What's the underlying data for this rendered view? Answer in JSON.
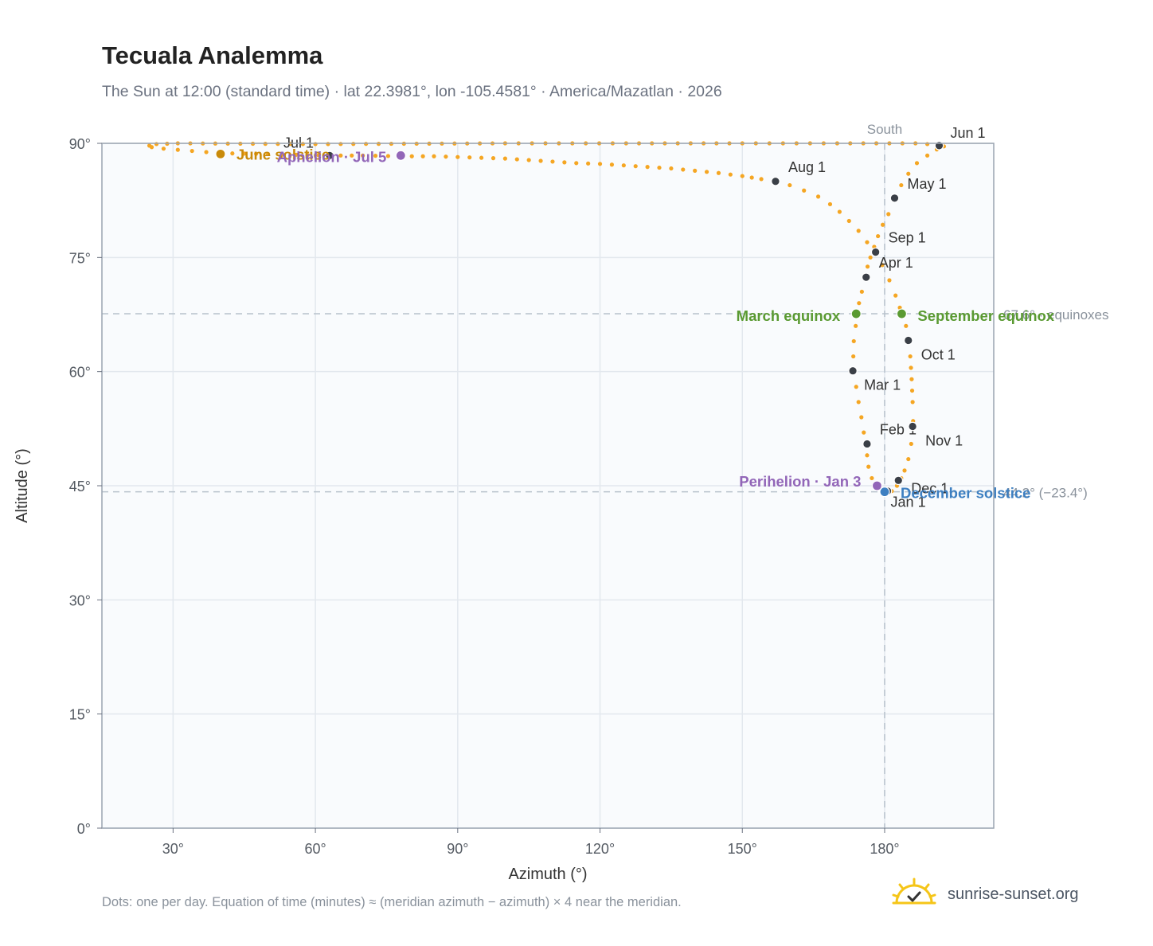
{
  "title": "Tecuala Analemma",
  "subtitle": "The Sun at 12:00 (standard time) · lat 22.3981°, lon -105.4581° · America/Mazatlan · 2026",
  "footnote": "Dots: one per day. Equation of time (minutes) ≈ (meridian azimuth − azimuth) × 4 near the meridian.",
  "brand": {
    "name": "sunrise-sunset.org",
    "logo_icon": "sun-logo-icon"
  },
  "colors": {
    "path": "#f5a623",
    "month_marker": "#3a3f47",
    "solstice_june": "#c98a0a",
    "solstice_december": "#3d7fc1",
    "equinox": "#5a9a32",
    "apsis": "#9266b8",
    "reference_line": "#b8c2cc",
    "plot_bg": "#f9fbfd"
  },
  "chart_data": {
    "type": "scatter",
    "title": "Tecuala Analemma",
    "xlabel": "Azimuth (°)",
    "ylabel": "Altitude (°)",
    "xlim": [
      15,
      203
    ],
    "ylim": [
      0,
      90
    ],
    "x_ticks": [
      "30°",
      "60°",
      "90°",
      "120°",
      "150°",
      "180°"
    ],
    "x_tick_values": [
      30,
      60,
      90,
      120,
      150,
      180
    ],
    "y_ticks": [
      "0°",
      "15°",
      "30°",
      "45°",
      "60°",
      "75°",
      "90°"
    ],
    "y_tick_values": [
      0,
      15,
      30,
      45,
      60,
      75,
      90
    ],
    "grid": true,
    "meridian": {
      "azimuth": 180,
      "label": "South"
    },
    "reference_lines": [
      {
        "altitude": 67.6,
        "label": "67.6° · equinoxes"
      },
      {
        "altitude": 44.2,
        "label": "44.2° (−23.4°)"
      }
    ],
    "series": [
      {
        "daily_points": [
          [
            180.6,
            44.3
          ],
          [
            178.7,
            45.0
          ],
          [
            177.3,
            46.0
          ],
          [
            176.6,
            47.5
          ],
          [
            176.3,
            49.0
          ],
          [
            176.1,
            50.5
          ],
          [
            175.6,
            52.0
          ],
          [
            175.1,
            54.0
          ],
          [
            174.5,
            56.0
          ],
          [
            174.0,
            58.0
          ],
          [
            173.6,
            60.0
          ],
          [
            173.4,
            62.0
          ],
          [
            173.5,
            64.0
          ],
          [
            173.9,
            66.0
          ],
          [
            174.2,
            67.6
          ],
          [
            174.6,
            69.0
          ],
          [
            175.2,
            70.5
          ],
          [
            175.8,
            72.2
          ],
          [
            176.4,
            73.8
          ],
          [
            177.0,
            75.0
          ],
          [
            177.8,
            76.4
          ],
          [
            178.6,
            77.8
          ],
          [
            179.6,
            79.3
          ],
          [
            180.8,
            80.7
          ],
          [
            182.1,
            82.8
          ],
          [
            183.5,
            84.5
          ],
          [
            185.0,
            86.0
          ],
          [
            186.8,
            87.4
          ],
          [
            189.0,
            88.4
          ],
          [
            191.0,
            89.2
          ],
          [
            192.5,
            89.6
          ],
          [
            191.5,
            89.8
          ],
          [
            189.0,
            89.9
          ],
          [
            186.5,
            90.0
          ],
          [
            170.0,
            90.0
          ],
          [
            150.0,
            90.0
          ],
          [
            125.5,
            90.0
          ],
          [
            100.0,
            90.0
          ],
          [
            60.0,
            89.9
          ],
          [
            31.0,
            90.0
          ],
          [
            26.5,
            89.9
          ],
          [
            25.0,
            89.7
          ],
          [
            25.5,
            89.5
          ],
          [
            28.0,
            89.3
          ],
          [
            34.0,
            89.0
          ],
          [
            40.0,
            88.7
          ],
          [
            50.0,
            88.6
          ],
          [
            56.0,
            88.5
          ],
          [
            63.0,
            88.4
          ],
          [
            70.0,
            88.4
          ],
          [
            78.0,
            88.3
          ],
          [
            85.0,
            88.3
          ],
          [
            90.0,
            88.2
          ],
          [
            95.0,
            88.1
          ],
          [
            100.0,
            88.0
          ],
          [
            105.0,
            87.8
          ],
          [
            110.0,
            87.6
          ],
          [
            115.0,
            87.4
          ],
          [
            120.0,
            87.3
          ],
          [
            125.0,
            87.1
          ],
          [
            130.0,
            86.9
          ],
          [
            135.0,
            86.7
          ],
          [
            140.0,
            86.4
          ],
          [
            145.0,
            86.1
          ],
          [
            150.0,
            85.7
          ],
          [
            154.0,
            85.3
          ],
          [
            157.0,
            85.0
          ],
          [
            160.0,
            84.5
          ],
          [
            163.0,
            83.8
          ],
          [
            166.0,
            83.0
          ],
          [
            168.5,
            82.0
          ],
          [
            170.5,
            81.0
          ],
          [
            172.5,
            79.8
          ],
          [
            174.5,
            78.5
          ],
          [
            176.3,
            77.0
          ],
          [
            177.8,
            75.7
          ],
          [
            179.5,
            74.0
          ],
          [
            181.0,
            72.0
          ],
          [
            182.3,
            70.0
          ],
          [
            183.2,
            68.4
          ],
          [
            183.8,
            67.6
          ],
          [
            184.5,
            66.0
          ],
          [
            185.0,
            64.1
          ],
          [
            185.4,
            62.0
          ],
          [
            185.7,
            59.0
          ],
          [
            185.9,
            56.0
          ],
          [
            186.0,
            53.5
          ],
          [
            185.9,
            52.8
          ],
          [
            185.6,
            50.5
          ],
          [
            185.0,
            48.5
          ],
          [
            184.2,
            47.0
          ],
          [
            183.5,
            46.0
          ],
          [
            182.6,
            45.0
          ],
          [
            181.5,
            44.3
          ],
          [
            180.6,
            44.3
          ]
        ]
      }
    ],
    "month_markers": [
      {
        "label": "Jan 1",
        "azimuth": 180.6,
        "altitude": 44.3
      },
      {
        "label": "Feb 1",
        "azimuth": 176.3,
        "altitude": 50.5
      },
      {
        "label": "Mar 1",
        "azimuth": 173.3,
        "altitude": 60.1
      },
      {
        "label": "Apr 1",
        "azimuth": 176.1,
        "altitude": 72.4
      },
      {
        "label": "May 1",
        "azimuth": 182.1,
        "altitude": 82.8
      },
      {
        "label": "Jun 1",
        "azimuth": 191.5,
        "altitude": 89.7
      },
      {
        "label": "Jul 1",
        "azimuth": 63.0,
        "altitude": 88.4
      },
      {
        "label": "Aug 1",
        "azimuth": 157.0,
        "altitude": 85.0
      },
      {
        "label": "Sep 1",
        "azimuth": 178.1,
        "altitude": 75.7
      },
      {
        "label": "Oct 1",
        "azimuth": 185.0,
        "altitude": 64.1
      },
      {
        "label": "Nov 1",
        "azimuth": 185.9,
        "altitude": 52.8
      },
      {
        "label": "Dec 1",
        "azimuth": 182.9,
        "altitude": 45.7
      }
    ],
    "events": [
      {
        "label": "June solstice",
        "azimuth": 40.0,
        "altitude": 88.6,
        "kind": "solstice_june"
      },
      {
        "label": "Aphelion · Jul 5",
        "azimuth": 78.0,
        "altitude": 88.4,
        "kind": "apsis"
      },
      {
        "label": "March equinox",
        "azimuth": 174.0,
        "altitude": 67.6,
        "kind": "equinox"
      },
      {
        "label": "September equinox",
        "azimuth": 183.6,
        "altitude": 67.6,
        "kind": "equinox"
      },
      {
        "label": "Perihelion · Jan 3",
        "azimuth": 178.4,
        "altitude": 45.0,
        "kind": "apsis"
      },
      {
        "label": "December solstice",
        "azimuth": 180.0,
        "altitude": 44.2,
        "kind": "solstice_december"
      }
    ]
  }
}
